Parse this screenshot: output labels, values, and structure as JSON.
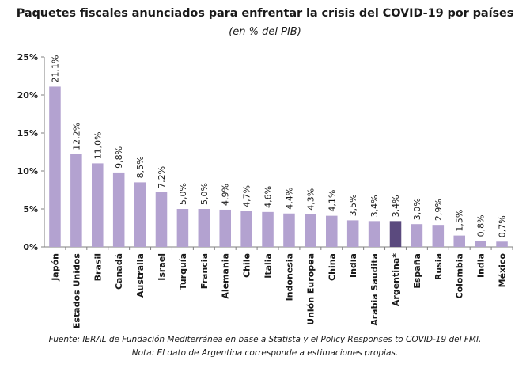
{
  "title": "Paquetes fiscales anunciados para enfrentar la crisis del  COVID-19 por países",
  "subtitle": "(en % del PIB)",
  "footnotes": [
    "Fuente: IERAL de Fundación Mediterránea en base a Statista y el Policy Responses to COVID-19 del FMI.",
    "Nota: El dato de Argentina corresponde a estimaciones propias."
  ],
  "colors": {
    "bar": "#b3a2d0",
    "highlight": "#5b4a7e",
    "axis": "#7f7f7f"
  },
  "chart_data": {
    "type": "bar",
    "title": "Paquetes fiscales anunciados para enfrentar la crisis del  COVID-19 por países",
    "subtitle": "(en % del PIB)",
    "xlabel": "",
    "ylabel": "",
    "ylim": [
      0,
      25
    ],
    "yticks": [
      0,
      5,
      10,
      15,
      20,
      25
    ],
    "ytick_labels": [
      "0%",
      "5%",
      "10%",
      "15%",
      "20%",
      "25%"
    ],
    "grid": false,
    "legend": "none",
    "highlight_category": "Argentina*",
    "categories": [
      "Japón",
      "Estados Unidos",
      "Brasil",
      "Canadá",
      "Australia",
      "Israel",
      "Turquía",
      "Francia",
      "Alemania",
      "Chile",
      "Italia",
      "Indonesia",
      "Unión Europea",
      "China",
      "India",
      "Arabia Saudita",
      "Argentina*",
      "España",
      "Rusia",
      "Colombia",
      "India",
      "México"
    ],
    "values": [
      21.1,
      12.2,
      11.0,
      9.8,
      8.5,
      7.2,
      5.0,
      5.0,
      4.9,
      4.7,
      4.6,
      4.4,
      4.3,
      4.1,
      3.5,
      3.4,
      3.4,
      3.0,
      2.9,
      1.5,
      0.8,
      0.7
    ],
    "value_labels": [
      "21,1%",
      "12,2%",
      "11,0%",
      "9,8%",
      "8,5%",
      "7,2%",
      "5,0%",
      "5,0%",
      "4,9%",
      "4,7%",
      "4,6%",
      "4,4%",
      "4,3%",
      "4,1%",
      "3,5%",
      "3,4%",
      "3,4%",
      "3,0%",
      "2,9%",
      "1,5%",
      "0,8%",
      "0,7%"
    ]
  }
}
